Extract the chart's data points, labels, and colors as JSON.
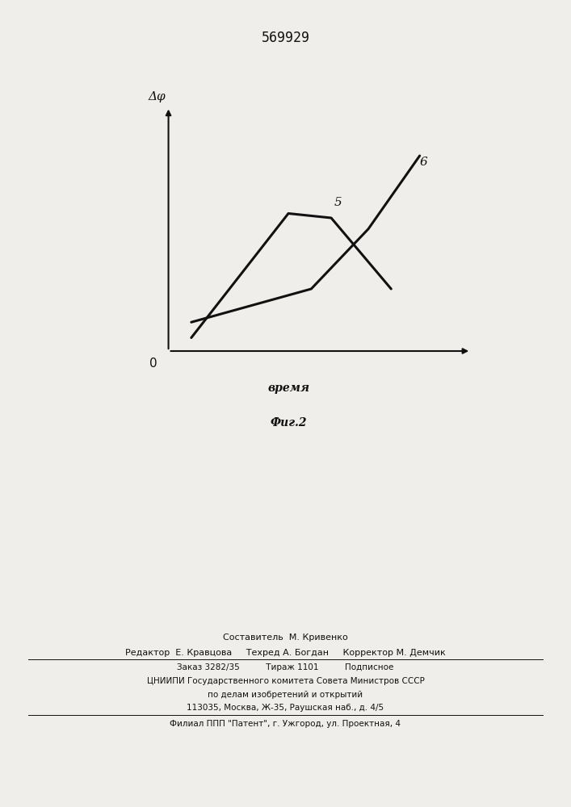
{
  "patent_number": "569929",
  "fig_label": "Фиг.2",
  "xlabel": "время",
  "ylabel": "Δφ",
  "origin_label": "0",
  "curve5_label": "5",
  "curve6_label": "6",
  "curve5_x": [
    0.08,
    0.42,
    0.57,
    0.78
  ],
  "curve5_y": [
    0.06,
    0.62,
    0.6,
    0.28
  ],
  "curve6_x": [
    0.08,
    0.5,
    0.7,
    0.88
  ],
  "curve6_y": [
    0.13,
    0.28,
    0.55,
    0.88
  ],
  "line_color": "#111111",
  "line_width": 2.2,
  "bg_color": "#f0eeea",
  "text_color": "#111111",
  "footer_line1": "Составитель  М. Кривенко",
  "footer_line2": "Редактор  Е. Кравцова     Техред А. Богдан     Корректор М. Демчик",
  "footer_line3": "Заказ 3282/35          Тираж 1101          Подписное",
  "footer_line4": "ЦНИИПИ Государственного комитета Совета Министров СССР",
  "footer_line5": "по делам изобретений и открытий",
  "footer_line6": "113035, Москва, Ж-35, Раушская наб., д. 4/5",
  "footer_line7": "Филиал ППП \"Патент\", г. Ужгород, ул. Проектная, 4"
}
